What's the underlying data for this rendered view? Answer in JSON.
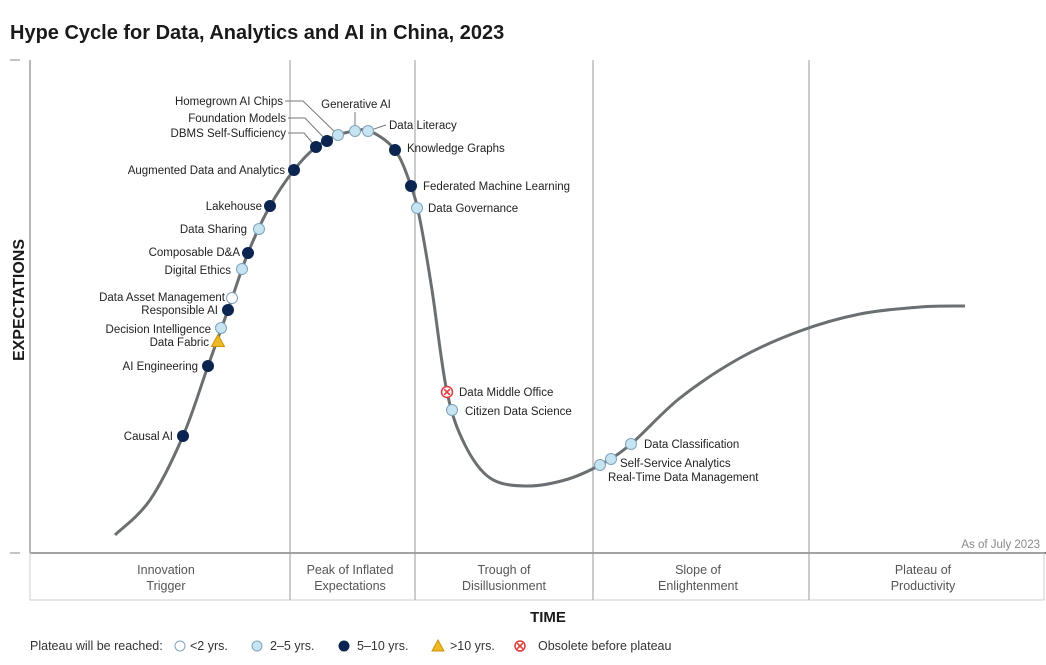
{
  "title": "Hype Cycle for Data, Analytics and AI in China, 2023",
  "y_axis_label": "EXPECTATIONS",
  "x_axis_label": "TIME",
  "as_of": "As of July 2023",
  "phases": [
    {
      "line1": "Innovation",
      "line2": "Trigger"
    },
    {
      "line1": "Peak of Inflated",
      "line2": "Expectations"
    },
    {
      "line1": "Trough of",
      "line2": "Disillusionment"
    },
    {
      "line1": "Slope of",
      "line2": "Enlightenment"
    },
    {
      "line1": "Plateau of",
      "line2": "Productivity"
    }
  ],
  "legend": {
    "title": "Plateau will be reached:",
    "items": [
      {
        "key": "lt2",
        "label": "<2 yrs."
      },
      {
        "key": "2to5",
        "label": "2–5 yrs."
      },
      {
        "key": "5to10",
        "label": "5–10 yrs."
      },
      {
        "key": "gt10",
        "label": ">10 yrs."
      },
      {
        "key": "obsolete",
        "label": "Obsolete before plateau"
      }
    ]
  },
  "colors": {
    "lt2": "#ffffff",
    "2to5": "#c6e4f2",
    "5to10": "#0b2550",
    "gt10": "#f0b823",
    "obsolete": "#e03a3a",
    "curve": "#6b6f72",
    "grid": "#9a9a9a"
  },
  "technologies": [
    {
      "name": "Causal AI",
      "plateau": "5to10"
    },
    {
      "name": "AI Engineering",
      "plateau": "5to10"
    },
    {
      "name": "Data Fabric",
      "plateau": "gt10"
    },
    {
      "name": "Decision Intelligence",
      "plateau": "2to5"
    },
    {
      "name": "Responsible AI",
      "plateau": "5to10"
    },
    {
      "name": "Data Asset Management",
      "plateau": "lt2"
    },
    {
      "name": "Digital Ethics",
      "plateau": "2to5"
    },
    {
      "name": "Composable D&A",
      "plateau": "5to10"
    },
    {
      "name": "Data Sharing",
      "plateau": "2to5"
    },
    {
      "name": "Lakehouse",
      "plateau": "5to10"
    },
    {
      "name": "Augmented Data and Analytics",
      "plateau": "5to10"
    },
    {
      "name": "DBMS Self-Sufficiency",
      "plateau": "5to10"
    },
    {
      "name": "Foundation Models",
      "plateau": "5to10"
    },
    {
      "name": "Homegrown AI Chips",
      "plateau": "2to5"
    },
    {
      "name": "Generative AI",
      "plateau": "2to5"
    },
    {
      "name": "Data Literacy",
      "plateau": "2to5"
    },
    {
      "name": "Knowledge Graphs",
      "plateau": "5to10"
    },
    {
      "name": "Federated Machine Learning",
      "plateau": "5to10"
    },
    {
      "name": "Data Governance",
      "plateau": "2to5"
    },
    {
      "name": "Data Middle Office",
      "plateau": "obsolete"
    },
    {
      "name": "Citizen Data Science",
      "plateau": "2to5"
    },
    {
      "name": "Real-Time Data Management",
      "plateau": "2to5"
    },
    {
      "name": "Self-Service Analytics",
      "plateau": "2to5"
    },
    {
      "name": "Data Classification",
      "plateau": "2to5"
    }
  ]
}
